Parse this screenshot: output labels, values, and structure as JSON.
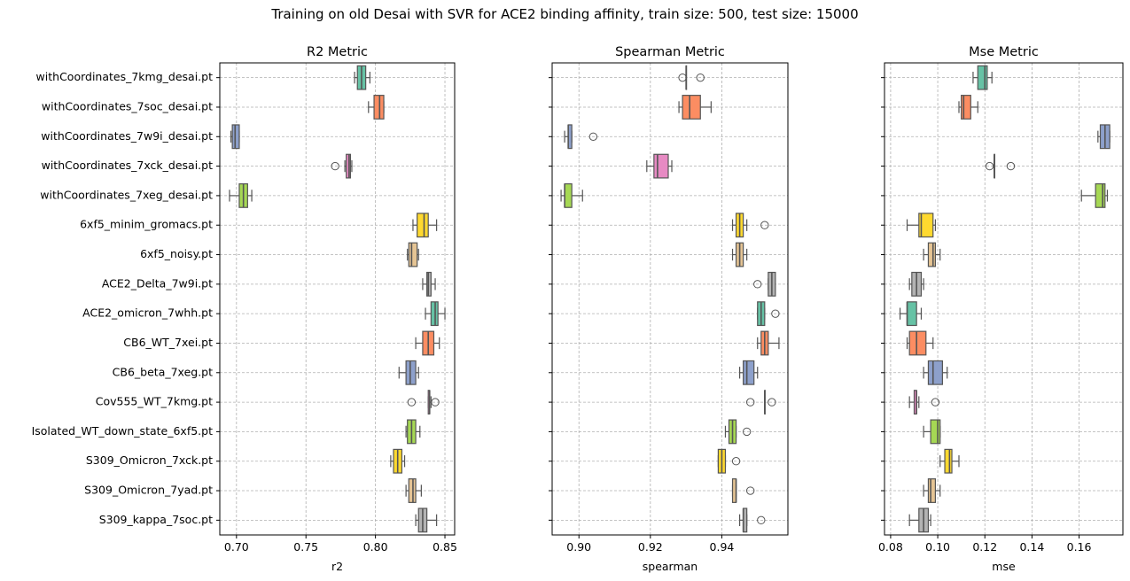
{
  "figure_title": "Training on old Desai with SVR for ACE2 binding affinity, train size: 500, test size: 15000",
  "chart_data": [
    {
      "type": "box",
      "title": "R2 Metric",
      "xlabel": "r2",
      "ylabel": "",
      "xlim": [
        0.688,
        0.857
      ],
      "xticks": [
        "0.70",
        "0.75",
        "0.80",
        "0.85"
      ],
      "xtick_values": [
        0.7,
        0.75,
        0.8,
        0.85
      ],
      "grid": true,
      "categories": [
        "withCoordinates_7kmg_desai.pt",
        "withCoordinates_7soc_desai.pt",
        "withCoordinates_7w9i_desai.pt",
        "withCoordinates_7xck_desai.pt",
        "withCoordinates_7xeg_desai.pt",
        "6xf5_minim_gromacs.pt",
        "6xf5_noisy.pt",
        "ACE2_Delta_7w9i.pt",
        "ACE2_omicron_7whh.pt",
        "CB6_WT_7xei.pt",
        "CB6_beta_7xeg.pt",
        "Cov555_WT_7kmg.pt",
        "Isolated_WT_down_state_6xf5.pt",
        "S309_Omicron_7xck.pt",
        "S309_Omicron_7yad.pt",
        "S309_kappa_7soc.pt"
      ],
      "boxes": [
        {
          "whislo": 0.785,
          "q1": 0.787,
          "med": 0.79,
          "q3": 0.793,
          "whishi": 0.796,
          "fliers": []
        },
        {
          "whislo": 0.795,
          "q1": 0.799,
          "med": 0.803,
          "q3": 0.806,
          "whishi": 0.806,
          "fliers": []
        },
        {
          "whislo": 0.696,
          "q1": 0.697,
          "med": 0.699,
          "q3": 0.702,
          "whishi": 0.702,
          "fliers": []
        },
        {
          "whislo": 0.778,
          "q1": 0.779,
          "med": 0.781,
          "q3": 0.782,
          "whishi": 0.783,
          "fliers": [
            0.771
          ]
        },
        {
          "whislo": 0.695,
          "q1": 0.702,
          "med": 0.705,
          "q3": 0.708,
          "whishi": 0.711,
          "fliers": []
        },
        {
          "whislo": 0.827,
          "q1": 0.83,
          "med": 0.835,
          "q3": 0.838,
          "whishi": 0.844,
          "fliers": []
        },
        {
          "whislo": 0.823,
          "q1": 0.824,
          "med": 0.826,
          "q3": 0.83,
          "whishi": 0.831,
          "fliers": []
        },
        {
          "whislo": 0.834,
          "q1": 0.837,
          "med": 0.838,
          "q3": 0.84,
          "whishi": 0.843,
          "fliers": []
        },
        {
          "whislo": 0.836,
          "q1": 0.84,
          "med": 0.843,
          "q3": 0.845,
          "whishi": 0.85,
          "fliers": []
        },
        {
          "whislo": 0.829,
          "q1": 0.834,
          "med": 0.838,
          "q3": 0.842,
          "whishi": 0.846,
          "fliers": []
        },
        {
          "whislo": 0.817,
          "q1": 0.822,
          "med": 0.825,
          "q3": 0.829,
          "whishi": 0.831,
          "fliers": []
        },
        {
          "whislo": 0.838,
          "q1": 0.838,
          "med": 0.839,
          "q3": 0.839,
          "whishi": 0.84,
          "fliers": [
            0.826,
            0.843
          ]
        },
        {
          "whislo": 0.822,
          "q1": 0.823,
          "med": 0.826,
          "q3": 0.829,
          "whishi": 0.832,
          "fliers": []
        },
        {
          "whislo": 0.811,
          "q1": 0.813,
          "med": 0.816,
          "q3": 0.819,
          "whishi": 0.821,
          "fliers": []
        },
        {
          "whislo": 0.822,
          "q1": 0.824,
          "med": 0.827,
          "q3": 0.829,
          "whishi": 0.833,
          "fliers": []
        },
        {
          "whislo": 0.829,
          "q1": 0.831,
          "med": 0.834,
          "q3": 0.837,
          "whishi": 0.844,
          "fliers": []
        }
      ]
    },
    {
      "type": "box",
      "title": "Spearman Metric",
      "xlabel": "spearman",
      "ylabel": "",
      "xlim": [
        0.8925,
        0.9585
      ],
      "xticks": [
        "0.90",
        "0.92",
        "0.94"
      ],
      "xtick_values": [
        0.9,
        0.92,
        0.94
      ],
      "grid": true,
      "boxes": [
        {
          "whislo": 0.93,
          "q1": 0.93,
          "med": 0.93,
          "q3": 0.93,
          "whishi": 0.93,
          "fliers": [
            0.929,
            0.934
          ]
        },
        {
          "whislo": 0.928,
          "q1": 0.929,
          "med": 0.931,
          "q3": 0.934,
          "whishi": 0.937,
          "fliers": []
        },
        {
          "whislo": 0.896,
          "q1": 0.897,
          "med": 0.897,
          "q3": 0.898,
          "whishi": 0.898,
          "fliers": [
            0.904
          ]
        },
        {
          "whislo": 0.919,
          "q1": 0.921,
          "med": 0.922,
          "q3": 0.925,
          "whishi": 0.926,
          "fliers": []
        },
        {
          "whislo": 0.895,
          "q1": 0.896,
          "med": 0.896,
          "q3": 0.898,
          "whishi": 0.901,
          "fliers": []
        },
        {
          "whislo": 0.943,
          "q1": 0.944,
          "med": 0.945,
          "q3": 0.946,
          "whishi": 0.947,
          "fliers": [
            0.952
          ]
        },
        {
          "whislo": 0.943,
          "q1": 0.944,
          "med": 0.945,
          "q3": 0.946,
          "whishi": 0.947,
          "fliers": []
        },
        {
          "whislo": 0.953,
          "q1": 0.953,
          "med": 0.954,
          "q3": 0.955,
          "whishi": 0.955,
          "fliers": [
            0.95
          ]
        },
        {
          "whislo": 0.95,
          "q1": 0.95,
          "med": 0.951,
          "q3": 0.952,
          "whishi": 0.952,
          "fliers": [
            0.955
          ]
        },
        {
          "whislo": 0.95,
          "q1": 0.951,
          "med": 0.952,
          "q3": 0.953,
          "whishi": 0.956,
          "fliers": []
        },
        {
          "whislo": 0.945,
          "q1": 0.946,
          "med": 0.947,
          "q3": 0.949,
          "whishi": 0.95,
          "fliers": []
        },
        {
          "whislo": 0.952,
          "q1": 0.952,
          "med": 0.952,
          "q3": 0.952,
          "whishi": 0.952,
          "fliers": [
            0.948,
            0.954
          ]
        },
        {
          "whislo": 0.941,
          "q1": 0.942,
          "med": 0.943,
          "q3": 0.944,
          "whishi": 0.944,
          "fliers": [
            0.947
          ]
        },
        {
          "whislo": 0.939,
          "q1": 0.939,
          "med": 0.94,
          "q3": 0.941,
          "whishi": 0.941,
          "fliers": [
            0.944
          ]
        },
        {
          "whislo": 0.943,
          "q1": 0.943,
          "med": 0.944,
          "q3": 0.944,
          "whishi": 0.944,
          "fliers": [
            0.948
          ]
        },
        {
          "whislo": 0.945,
          "q1": 0.946,
          "med": 0.946,
          "q3": 0.947,
          "whishi": 0.947,
          "fliers": [
            0.951
          ]
        }
      ]
    },
    {
      "type": "box",
      "title": "Mse Metric",
      "xlabel": "mse",
      "ylabel": "",
      "xlim": [
        0.0774,
        0.1786
      ],
      "xticks": [
        "0.08",
        "0.10",
        "0.12",
        "0.14",
        "0.16"
      ],
      "xtick_values": [
        0.08,
        0.1,
        0.12,
        0.14,
        0.16
      ],
      "grid": true,
      "boxes": [
        {
          "whislo": 0.115,
          "q1": 0.117,
          "med": 0.12,
          "q3": 0.121,
          "whishi": 0.123,
          "fliers": []
        },
        {
          "whislo": 0.109,
          "q1": 0.11,
          "med": 0.111,
          "q3": 0.114,
          "whishi": 0.117,
          "fliers": []
        },
        {
          "whislo": 0.168,
          "q1": 0.169,
          "med": 0.171,
          "q3": 0.173,
          "whishi": 0.173,
          "fliers": []
        },
        {
          "whislo": 0.124,
          "q1": 0.124,
          "med": 0.124,
          "q3": 0.124,
          "whishi": 0.124,
          "fliers": [
            0.122,
            0.131
          ]
        },
        {
          "whislo": 0.161,
          "q1": 0.167,
          "med": 0.17,
          "q3": 0.171,
          "whishi": 0.172,
          "fliers": []
        },
        {
          "whislo": 0.087,
          "q1": 0.092,
          "med": 0.093,
          "q3": 0.098,
          "whishi": 0.099,
          "fliers": []
        },
        {
          "whislo": 0.094,
          "q1": 0.096,
          "med": 0.098,
          "q3": 0.099,
          "whishi": 0.101,
          "fliers": []
        },
        {
          "whislo": 0.088,
          "q1": 0.089,
          "med": 0.091,
          "q3": 0.093,
          "whishi": 0.094,
          "fliers": []
        },
        {
          "whislo": 0.084,
          "q1": 0.087,
          "med": 0.087,
          "q3": 0.091,
          "whishi": 0.093,
          "fliers": []
        },
        {
          "whislo": 0.087,
          "q1": 0.088,
          "med": 0.091,
          "q3": 0.095,
          "whishi": 0.098,
          "fliers": []
        },
        {
          "whislo": 0.094,
          "q1": 0.096,
          "med": 0.098,
          "q3": 0.102,
          "whishi": 0.104,
          "fliers": []
        },
        {
          "whislo": 0.088,
          "q1": 0.09,
          "med": 0.091,
          "q3": 0.091,
          "whishi": 0.092,
          "fliers": [
            0.099
          ]
        },
        {
          "whislo": 0.094,
          "q1": 0.097,
          "med": 0.1,
          "q3": 0.101,
          "whishi": 0.101,
          "fliers": []
        },
        {
          "whislo": 0.101,
          "q1": 0.103,
          "med": 0.105,
          "q3": 0.106,
          "whishi": 0.109,
          "fliers": []
        },
        {
          "whislo": 0.094,
          "q1": 0.096,
          "med": 0.097,
          "q3": 0.099,
          "whishi": 0.101,
          "fliers": []
        },
        {
          "whislo": 0.088,
          "q1": 0.092,
          "med": 0.094,
          "q3": 0.096,
          "whishi": 0.097,
          "fliers": []
        }
      ]
    }
  ],
  "palette": [
    "#66c2a5",
    "#fc8d62",
    "#8da0cb",
    "#e78ac3",
    "#a6d854",
    "#ffd92f",
    "#e5c494",
    "#b3b3b3"
  ],
  "line_color": "#555555"
}
